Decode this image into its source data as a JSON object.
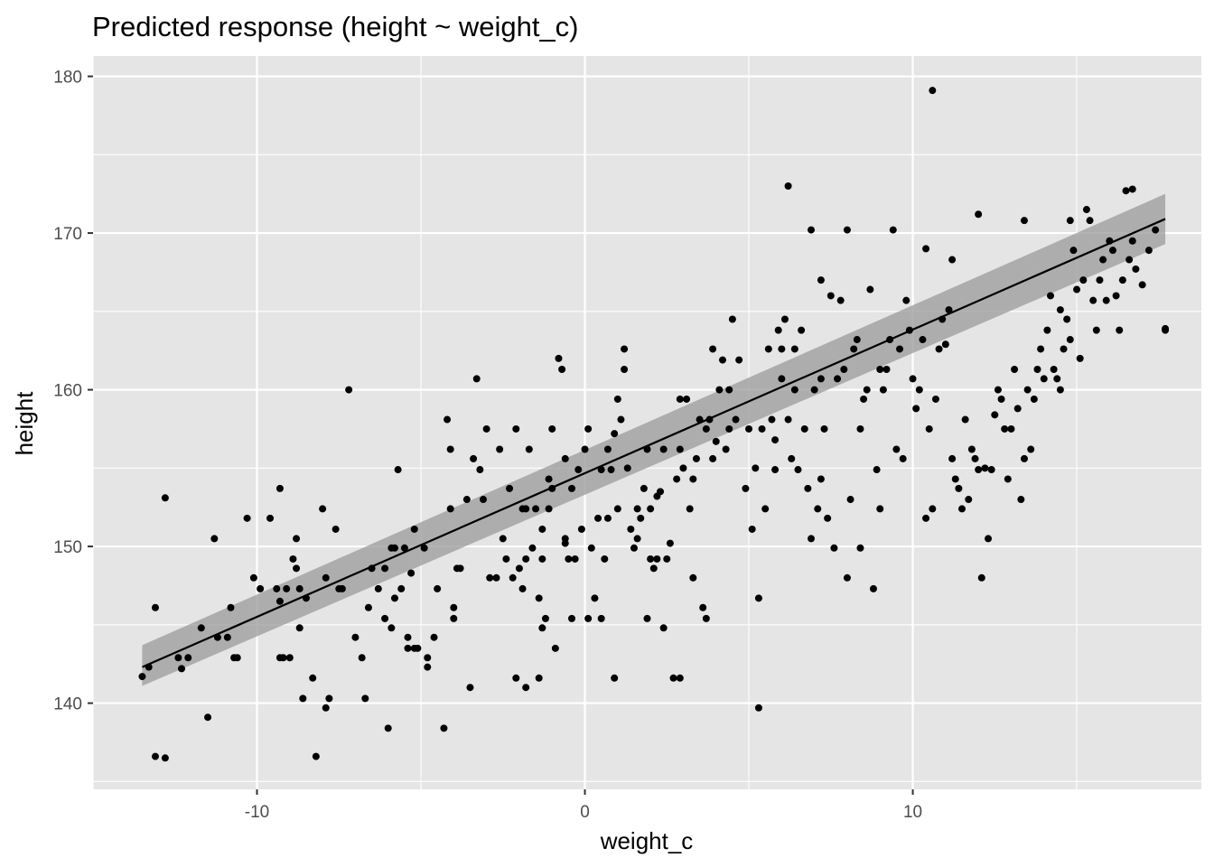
{
  "chart_data": {
    "type": "scatter",
    "title": "Predicted response (height ~ weight_c)",
    "xlabel": "weight_c",
    "ylabel": "height",
    "xlim": [
      -15.0,
      18.8
    ],
    "ylim": [
      134.5,
      181.3
    ],
    "x_ticks": [
      -10,
      0,
      10
    ],
    "y_ticks": [
      140,
      150,
      160,
      170,
      180
    ],
    "grid": true,
    "legend": "none",
    "colors": {
      "panel": "#e5e5e5",
      "grid": "#ffffff",
      "point": "#000000",
      "fit_line": "#000000",
      "ribbon": "#999999",
      "tick_label": "#4d4d4d"
    },
    "fit": {
      "x": [
        -13.5,
        17.7
      ],
      "y": [
        142.3,
        170.9
      ],
      "lower": [
        141.1,
        169.3
      ],
      "upper": [
        143.7,
        172.5
      ]
    },
    "points": [
      [
        -13.5,
        141.7
      ],
      [
        -13.3,
        142.3
      ],
      [
        -13.1,
        146.1
      ],
      [
        -13.1,
        136.6
      ],
      [
        -12.8,
        153.1
      ],
      [
        -12.4,
        142.9
      ],
      [
        -12.3,
        142.2
      ],
      [
        -12.1,
        142.9
      ],
      [
        -11.7,
        144.8
      ],
      [
        -11.5,
        139.1
      ],
      [
        -11.3,
        150.5
      ],
      [
        -11.2,
        144.2
      ],
      [
        -10.9,
        144.2
      ],
      [
        -10.8,
        146.1
      ],
      [
        -10.7,
        142.9
      ],
      [
        -10.6,
        142.9
      ],
      [
        -10.3,
        151.8
      ],
      [
        -10.1,
        148.0
      ],
      [
        -9.9,
        147.3
      ],
      [
        -9.6,
        151.8
      ],
      [
        -9.4,
        147.3
      ],
      [
        -9.3,
        153.7
      ],
      [
        -9.3,
        146.5
      ],
      [
        -9.2,
        142.9
      ],
      [
        -9.1,
        147.3
      ],
      [
        -9.0,
        142.9
      ],
      [
        -8.9,
        149.2
      ],
      [
        -8.8,
        148.6
      ],
      [
        -8.8,
        150.5
      ],
      [
        -8.7,
        147.3
      ],
      [
        -8.7,
        144.8
      ],
      [
        -8.5,
        146.7
      ],
      [
        -8.3,
        141.6
      ],
      [
        -8.2,
        136.6
      ],
      [
        -8.0,
        152.4
      ],
      [
        -7.9,
        139.7
      ],
      [
        -7.9,
        148.0
      ],
      [
        -7.8,
        140.3
      ],
      [
        -7.6,
        151.1
      ],
      [
        -7.5,
        147.3
      ],
      [
        -7.4,
        147.3
      ],
      [
        -7.2,
        160.0
      ],
      [
        -7.0,
        144.2
      ],
      [
        -6.8,
        142.9
      ],
      [
        -6.7,
        140.3
      ],
      [
        -6.6,
        146.1
      ],
      [
        -6.5,
        148.6
      ],
      [
        -6.3,
        147.3
      ],
      [
        -6.1,
        148.6
      ],
      [
        -6.1,
        145.4
      ],
      [
        -5.9,
        149.9
      ],
      [
        -5.9,
        144.8
      ],
      [
        -5.8,
        146.7
      ],
      [
        -5.8,
        149.9
      ],
      [
        -5.7,
        154.9
      ],
      [
        -5.6,
        147.3
      ],
      [
        -5.5,
        149.9
      ],
      [
        -5.4,
        144.2
      ],
      [
        -5.4,
        143.5
      ],
      [
        -5.3,
        148.3
      ],
      [
        -5.2,
        143.5
      ],
      [
        -5.2,
        151.1
      ],
      [
        -5.1,
        143.5
      ],
      [
        -4.9,
        149.9
      ],
      [
        -4.8,
        142.9
      ],
      [
        -4.6,
        144.2
      ],
      [
        -4.5,
        147.3
      ],
      [
        -4.3,
        138.4
      ],
      [
        -4.2,
        158.1
      ],
      [
        -4.1,
        156.2
      ],
      [
        -4.1,
        152.4
      ],
      [
        -4.0,
        146.1
      ],
      [
        -4.0,
        145.4
      ],
      [
        -3.9,
        148.6
      ],
      [
        -3.8,
        148.6
      ],
      [
        -3.6,
        153.0
      ],
      [
        -3.4,
        155.6
      ],
      [
        -3.3,
        160.7
      ],
      [
        -3.2,
        154.9
      ],
      [
        -3.1,
        153.0
      ],
      [
        -3.0,
        157.5
      ],
      [
        -2.9,
        148.0
      ],
      [
        -2.7,
        148.0
      ],
      [
        -2.5,
        150.5
      ],
      [
        -2.4,
        149.2
      ],
      [
        -2.3,
        153.7
      ],
      [
        -2.2,
        148.0
      ],
      [
        -2.1,
        157.5
      ],
      [
        -2.0,
        148.6
      ],
      [
        -1.9,
        152.4
      ],
      [
        -1.9,
        147.3
      ],
      [
        -1.8,
        141.0
      ],
      [
        -1.8,
        152.4
      ],
      [
        -1.8,
        149.2
      ],
      [
        -1.7,
        156.2
      ],
      [
        -1.6,
        149.9
      ],
      [
        -1.5,
        152.4
      ],
      [
        -1.4,
        146.7
      ],
      [
        -1.3,
        144.8
      ],
      [
        -1.3,
        149.2
      ],
      [
        -1.3,
        151.1
      ],
      [
        -1.2,
        145.4
      ],
      [
        -1.1,
        152.4
      ],
      [
        -1.1,
        154.3
      ],
      [
        -1.0,
        153.7
      ],
      [
        -0.9,
        143.5
      ],
      [
        -0.8,
        162.0
      ],
      [
        -0.7,
        161.3
      ],
      [
        -0.6,
        150.5
      ],
      [
        -0.6,
        150.2
      ],
      [
        -0.6,
        155.6
      ],
      [
        -0.5,
        149.2
      ],
      [
        -0.4,
        153.7
      ],
      [
        -0.4,
        145.4
      ],
      [
        -0.3,
        149.2
      ],
      [
        -0.2,
        154.9
      ],
      [
        -0.1,
        151.1
      ],
      [
        0.0,
        156.2
      ],
      [
        0.1,
        157.5
      ],
      [
        0.1,
        145.4
      ],
      [
        0.2,
        149.9
      ],
      [
        0.3,
        146.7
      ],
      [
        0.4,
        151.8
      ],
      [
        0.5,
        145.4
      ],
      [
        0.5,
        154.9
      ],
      [
        0.6,
        149.2
      ],
      [
        0.7,
        151.8
      ],
      [
        0.7,
        156.2
      ],
      [
        0.8,
        154.9
      ],
      [
        0.9,
        141.6
      ],
      [
        1.0,
        159.4
      ],
      [
        1.0,
        152.4
      ],
      [
        1.1,
        158.1
      ],
      [
        1.2,
        162.6
      ],
      [
        1.2,
        161.3
      ],
      [
        1.3,
        155.0
      ],
      [
        1.4,
        151.1
      ],
      [
        1.5,
        149.9
      ],
      [
        1.6,
        152.4
      ],
      [
        1.6,
        150.5
      ],
      [
        1.7,
        151.8
      ],
      [
        1.8,
        153.7
      ],
      [
        1.9,
        156.2
      ],
      [
        1.9,
        145.4
      ],
      [
        2.0,
        149.2
      ],
      [
        2.0,
        152.4
      ],
      [
        2.1,
        148.6
      ],
      [
        2.2,
        153.2
      ],
      [
        2.2,
        149.2
      ],
      [
        2.3,
        153.5
      ],
      [
        2.4,
        144.8
      ],
      [
        2.4,
        156.2
      ],
      [
        2.5,
        149.2
      ],
      [
        2.6,
        150.2
      ],
      [
        2.7,
        141.6
      ],
      [
        2.8,
        154.3
      ],
      [
        2.9,
        141.6
      ],
      [
        2.9,
        156.2
      ],
      [
        3.0,
        155.0
      ],
      [
        3.1,
        159.4
      ],
      [
        3.2,
        152.4
      ],
      [
        3.3,
        148.0
      ],
      [
        3.3,
        154.3
      ],
      [
        3.4,
        155.6
      ],
      [
        3.5,
        158.1
      ],
      [
        3.6,
        146.1
      ],
      [
        3.7,
        145.4
      ],
      [
        3.7,
        157.5
      ],
      [
        3.8,
        158.1
      ],
      [
        3.9,
        162.6
      ],
      [
        3.9,
        155.6
      ],
      [
        4.0,
        156.7
      ],
      [
        4.1,
        160.0
      ],
      [
        4.2,
        161.9
      ],
      [
        4.3,
        156.2
      ],
      [
        4.4,
        157.5
      ],
      [
        4.5,
        164.5
      ],
      [
        4.6,
        158.1
      ],
      [
        4.7,
        161.9
      ],
      [
        4.9,
        153.7
      ],
      [
        5.0,
        157.5
      ],
      [
        5.1,
        151.1
      ],
      [
        5.2,
        155.0
      ],
      [
        5.3,
        146.7
      ],
      [
        5.4,
        157.5
      ],
      [
        5.5,
        152.4
      ],
      [
        5.6,
        162.6
      ],
      [
        5.7,
        158.1
      ],
      [
        5.8,
        156.8
      ],
      [
        5.9,
        163.8
      ],
      [
        6.0,
        160.7
      ],
      [
        6.0,
        162.6
      ],
      [
        6.1,
        164.5
      ],
      [
        6.2,
        158.1
      ],
      [
        6.3,
        155.6
      ],
      [
        6.4,
        162.6
      ],
      [
        6.5,
        154.9
      ],
      [
        6.6,
        163.8
      ],
      [
        6.7,
        157.5
      ],
      [
        6.8,
        153.7
      ],
      [
        6.9,
        150.5
      ],
      [
        6.9,
        170.2
      ],
      [
        7.0,
        160.0
      ],
      [
        7.1,
        152.4
      ],
      [
        7.2,
        154.3
      ],
      [
        7.2,
        160.7
      ],
      [
        7.3,
        157.5
      ],
      [
        7.4,
        151.8
      ],
      [
        7.5,
        166.0
      ],
      [
        7.6,
        149.9
      ],
      [
        7.7,
        160.7
      ],
      [
        7.8,
        165.7
      ],
      [
        7.9,
        161.3
      ],
      [
        8.0,
        148.0
      ],
      [
        8.1,
        153.0
      ],
      [
        8.2,
        162.6
      ],
      [
        8.3,
        163.2
      ],
      [
        8.4,
        157.5
      ],
      [
        8.5,
        159.4
      ],
      [
        8.6,
        160.0
      ],
      [
        8.7,
        166.4
      ],
      [
        8.8,
        147.3
      ],
      [
        8.9,
        154.9
      ],
      [
        9.0,
        152.4
      ],
      [
        9.1,
        160.0
      ],
      [
        9.2,
        161.3
      ],
      [
        9.3,
        163.2
      ],
      [
        9.4,
        170.2
      ],
      [
        9.5,
        156.2
      ],
      [
        9.6,
        162.6
      ],
      [
        9.7,
        155.6
      ],
      [
        9.8,
        165.7
      ],
      [
        9.9,
        163.8
      ],
      [
        10.0,
        160.7
      ],
      [
        10.1,
        158.8
      ],
      [
        10.2,
        160.0
      ],
      [
        10.3,
        163.2
      ],
      [
        10.4,
        151.8
      ],
      [
        10.5,
        157.5
      ],
      [
        10.6,
        152.4
      ],
      [
        10.7,
        159.4
      ],
      [
        10.8,
        162.6
      ],
      [
        10.9,
        164.5
      ],
      [
        11.0,
        162.9
      ],
      [
        11.1,
        165.1
      ],
      [
        11.2,
        155.6
      ],
      [
        11.3,
        154.3
      ],
      [
        11.4,
        153.7
      ],
      [
        11.5,
        152.4
      ],
      [
        11.6,
        158.1
      ],
      [
        11.7,
        153.0
      ],
      [
        11.8,
        156.2
      ],
      [
        11.9,
        155.6
      ],
      [
        12.0,
        154.9
      ],
      [
        12.1,
        148.0
      ],
      [
        12.2,
        155.0
      ],
      [
        12.3,
        150.5
      ],
      [
        12.4,
        154.9
      ],
      [
        12.5,
        158.4
      ],
      [
        12.6,
        160.0
      ],
      [
        12.7,
        159.4
      ],
      [
        12.8,
        157.5
      ],
      [
        12.9,
        154.3
      ],
      [
        13.0,
        157.5
      ],
      [
        13.1,
        161.3
      ],
      [
        13.2,
        158.8
      ],
      [
        13.3,
        153.0
      ],
      [
        13.4,
        155.6
      ],
      [
        13.5,
        160.0
      ],
      [
        13.6,
        156.2
      ],
      [
        13.7,
        159.4
      ],
      [
        13.8,
        161.3
      ],
      [
        13.9,
        162.6
      ],
      [
        14.0,
        160.7
      ],
      [
        14.1,
        163.8
      ],
      [
        14.2,
        166.0
      ],
      [
        14.3,
        161.3
      ],
      [
        14.4,
        160.7
      ],
      [
        14.5,
        165.1
      ],
      [
        14.6,
        162.6
      ],
      [
        14.7,
        164.5
      ],
      [
        14.8,
        163.2
      ],
      [
        14.9,
        168.9
      ],
      [
        15.0,
        166.4
      ],
      [
        15.1,
        162.0
      ],
      [
        15.2,
        167.0
      ],
      [
        15.3,
        171.5
      ],
      [
        15.4,
        170.8
      ],
      [
        15.5,
        165.7
      ],
      [
        15.6,
        163.8
      ],
      [
        15.7,
        167.0
      ],
      [
        15.8,
        168.3
      ],
      [
        15.9,
        165.7
      ],
      [
        16.0,
        169.5
      ],
      [
        16.1,
        168.9
      ],
      [
        16.2,
        166.0
      ],
      [
        16.3,
        163.8
      ],
      [
        16.4,
        167.0
      ],
      [
        16.5,
        172.7
      ],
      [
        16.6,
        168.3
      ],
      [
        16.7,
        169.5
      ],
      [
        16.8,
        167.7
      ],
      [
        17.0,
        166.7
      ],
      [
        17.2,
        168.9
      ],
      [
        17.4,
        170.2
      ],
      [
        17.7,
        163.8
      ],
      [
        -2.6,
        156.2
      ],
      [
        -1.0,
        157.5
      ],
      [
        0.9,
        157.2
      ],
      [
        2.9,
        159.4
      ],
      [
        4.4,
        160.0
      ],
      [
        5.8,
        154.9
      ],
      [
        6.4,
        160.0
      ],
      [
        7.2,
        167.0
      ],
      [
        8.0,
        170.2
      ],
      [
        9.0,
        161.3
      ],
      [
        10.4,
        169.0
      ],
      [
        11.2,
        168.3
      ],
      [
        12.0,
        171.2
      ],
      [
        13.4,
        170.8
      ],
      [
        14.5,
        160.0
      ],
      [
        14.8,
        170.8
      ],
      [
        16.7,
        172.8
      ],
      [
        17.7,
        163.9
      ],
      [
        6.2,
        173.0
      ],
      [
        10.6,
        179.1
      ],
      [
        5.3,
        139.7
      ],
      [
        8.4,
        149.9
      ],
      [
        -1.4,
        141.6
      ],
      [
        -3.5,
        141.0
      ],
      [
        -9.3,
        142.9
      ],
      [
        -12.8,
        136.5
      ],
      [
        -6.0,
        138.4
      ],
      [
        -4.8,
        142.3
      ],
      [
        -8.6,
        140.3
      ],
      [
        -2.1,
        141.6
      ]
    ]
  }
}
